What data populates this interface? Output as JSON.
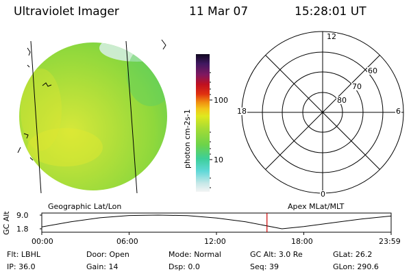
{
  "header": {
    "title": "Ultraviolet Imager",
    "date": "11 Mar 07",
    "time": "15:28:01 UT"
  },
  "colorbar": {
    "label": "photon cm-2s-1",
    "ticks": [
      "100",
      "10"
    ],
    "scale": "log"
  },
  "polar_plot": {
    "mlt_labels": [
      "12",
      "18",
      "6",
      "0"
    ],
    "lat_labels": [
      "60",
      "70",
      "80"
    ]
  },
  "panel_titles": {
    "left": "Geographic Lat/Lon",
    "right": "Apex MLat/MLT"
  },
  "chart_data": {
    "type": "line",
    "ylabel": "GC Alt",
    "y_ticks": [
      "9.0",
      "1.8"
    ],
    "x_ticks": [
      "00:00",
      "06:00",
      "12:00",
      "18:00",
      "23:59"
    ],
    "ylim": [
      1.8,
      9.0
    ],
    "x_hours": [
      0,
      2,
      4,
      6,
      8,
      10,
      12,
      14,
      16.5,
      18,
      20,
      22,
      23.98
    ],
    "y_values": [
      2.8,
      5.5,
      7.6,
      8.8,
      9.0,
      8.7,
      7.5,
      5.5,
      1.8,
      3.0,
      5.0,
      7.0,
      8.5
    ],
    "current_time_hour": 15.47,
    "marker_color": "#cc0000"
  },
  "info": {
    "row1": [
      {
        "label": "Flt:",
        "value": "LBHL"
      },
      {
        "label": "Door:",
        "value": "Open"
      },
      {
        "label": "Mode:",
        "value": "Normal"
      },
      {
        "label": "GC Alt:",
        "value": "3.0 Re"
      },
      {
        "label": "GLat:",
        "value": "26.2"
      }
    ],
    "row2": [
      {
        "label": "IP:",
        "value": "36.0"
      },
      {
        "label": "Gain:",
        "value": "14"
      },
      {
        "label": "Dsp:",
        "value": "0.0"
      },
      {
        "label": "Seq:",
        "value": "39"
      },
      {
        "label": "GLon:",
        "value": "290.6"
      }
    ]
  }
}
